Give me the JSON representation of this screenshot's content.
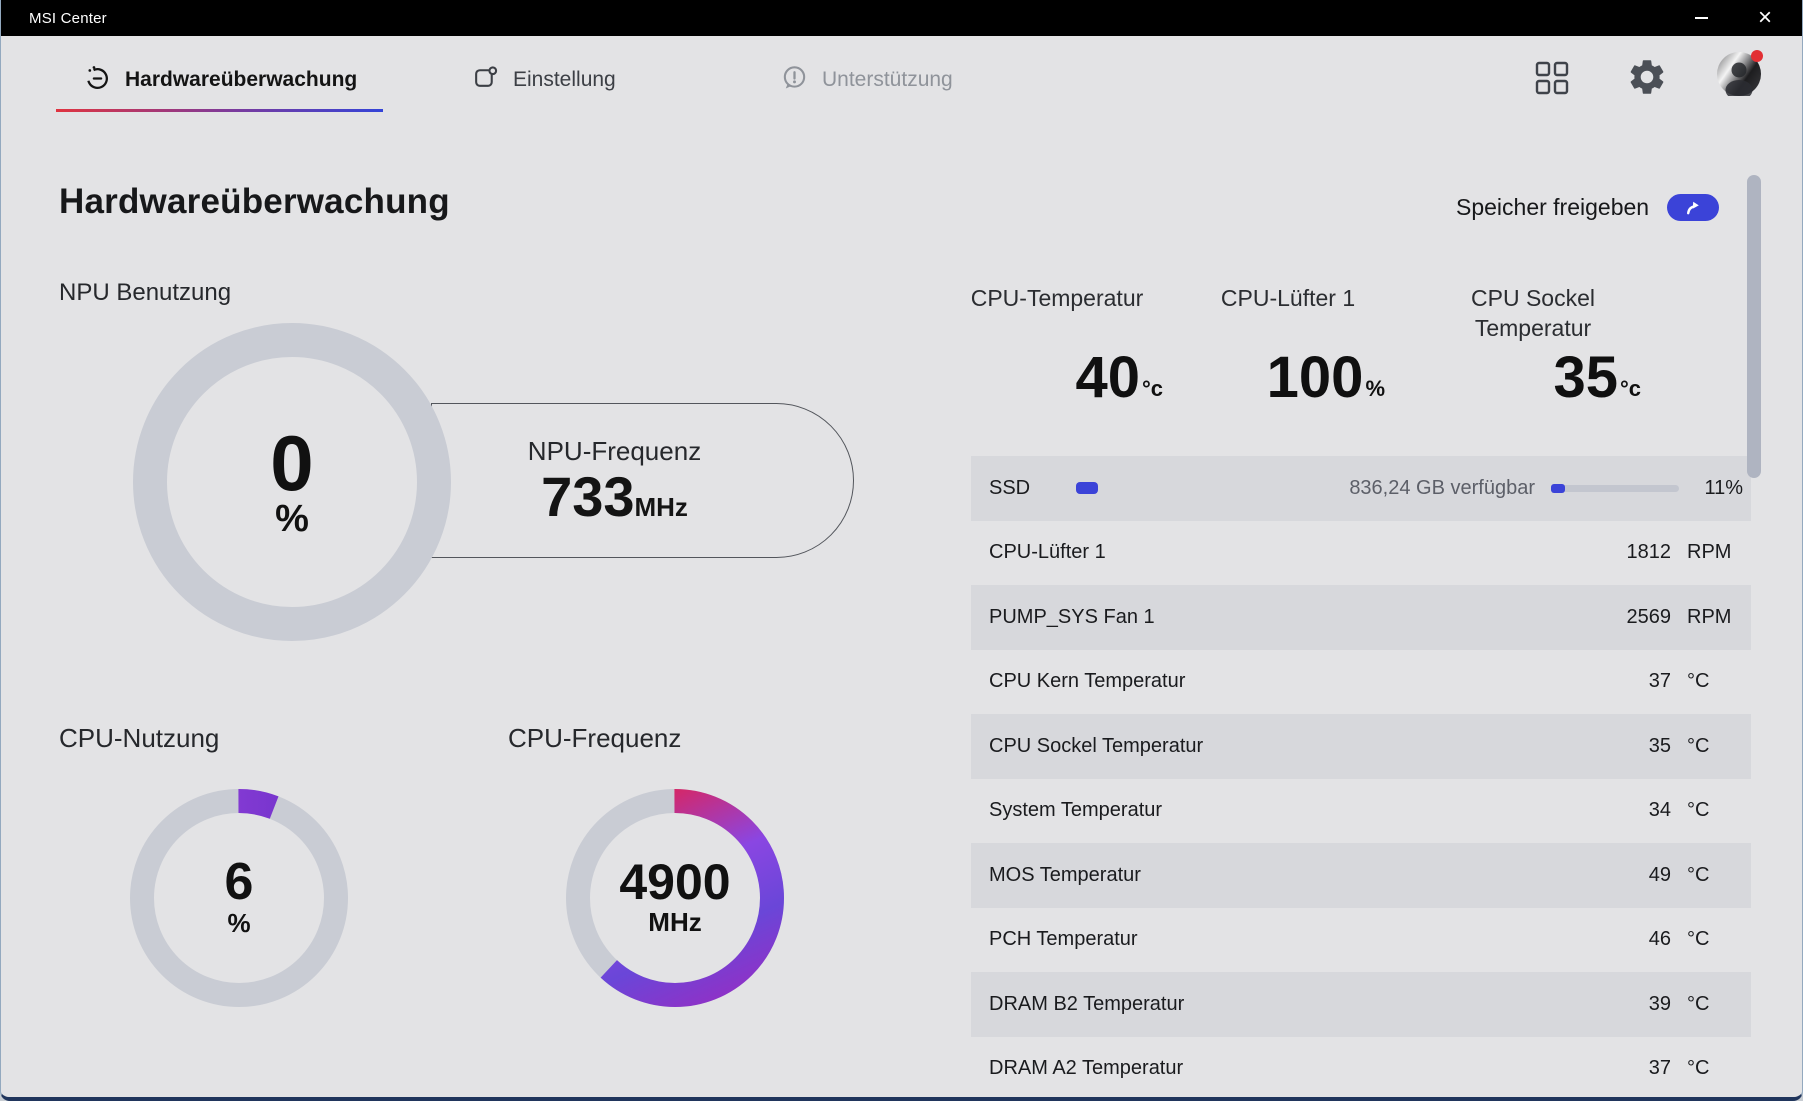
{
  "window": {
    "title": "MSI Center"
  },
  "nav": {
    "tabs": [
      {
        "label": "Hardwareüberwachung",
        "active": true
      },
      {
        "label": "Einstellung",
        "active": false
      },
      {
        "label": "Unterstützung",
        "active": false
      }
    ]
  },
  "header": {
    "title": "Hardwareüberwachung",
    "release_storage_label": "Speicher freigeben"
  },
  "gauges": {
    "npu_usage": {
      "label": "NPU Benutzung",
      "value": "0",
      "unit": "%",
      "percent": 0
    },
    "npu_freq": {
      "label": "NPU-Frequenz",
      "value": "733",
      "unit": "MHz"
    },
    "cpu_usage": {
      "label": "CPU-Nutzung",
      "value": "6",
      "unit": "%",
      "percent": 6
    },
    "cpu_freq": {
      "label": "CPU-Frequenz",
      "value": "4900",
      "unit": "MHz",
      "arc_percent": 62
    }
  },
  "stats": [
    {
      "label": "CPU-Temperatur",
      "label2": "",
      "value": "40",
      "unit": "°c"
    },
    {
      "label": "CPU-Lüfter 1",
      "label2": "",
      "value": "100",
      "unit": "%"
    },
    {
      "label": "CPU Sockel",
      "label2": "Temperatur",
      "value": "35",
      "unit": "°c"
    }
  ],
  "sensor_table": {
    "ssd_row": {
      "label": "SSD",
      "available": "836,24 GB verfügbar",
      "percent_label": "11%",
      "percent_value": 11
    },
    "rows": [
      {
        "label": "CPU-Lüfter 1",
        "value": "1812",
        "unit": "RPM"
      },
      {
        "label": "PUMP_SYS Fan 1",
        "value": "2569",
        "unit": "RPM"
      },
      {
        "label": "CPU Kern Temperatur",
        "value": "37",
        "unit": "°C"
      },
      {
        "label": "CPU Sockel Temperatur",
        "value": "35",
        "unit": "°C"
      },
      {
        "label": "System Temperatur",
        "value": "34",
        "unit": "°C"
      },
      {
        "label": "MOS Temperatur",
        "value": "49",
        "unit": "°C"
      },
      {
        "label": "PCH Temperatur",
        "value": "46",
        "unit": "°C"
      },
      {
        "label": "DRAM B2 Temperatur",
        "value": "39",
        "unit": "°C"
      },
      {
        "label": "DRAM A2 Temperatur",
        "value": "37",
        "unit": "°C"
      }
    ]
  },
  "colors": {
    "accent_blue": "#3b43d8",
    "underline_red": "#e03440",
    "underline_blue": "#3444d8",
    "gauge_track": "#c9ccd4"
  }
}
